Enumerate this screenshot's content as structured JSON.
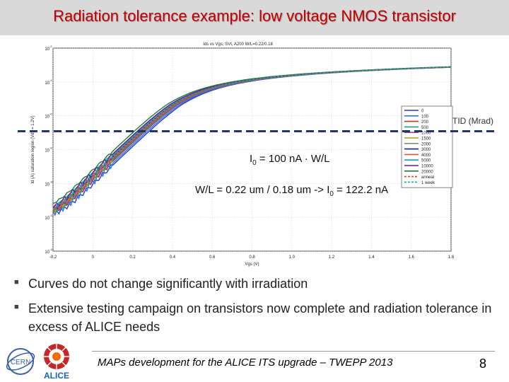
{
  "slide": {
    "title": "Radiation tolerance example: low voltage NMOS transistor",
    "footer": "MAPs development for the ALICE ITS upgrade – TWEPP 2013",
    "page_number": "8",
    "bullets": [
      "Curves do not change significantly with irradiation",
      "Extensive testing campaign on transistors now complete and radiation tolerance in excess of ALICE needs"
    ],
    "annotations": {
      "i0_main": "I",
      "i0_sub": "0",
      "i0_rest": " = 100 nA · W/L",
      "wl_main": "W/L = 0.22 um / 0.18 um -> I",
      "wl_sub": "0",
      "wl_rest": " = 122.2 nA"
    },
    "tid_label": "TID (Mrad)",
    "logos": {
      "cern": "CERN",
      "alice": "ALICE"
    }
  },
  "colors": {
    "title": "#c00000",
    "title_bar": "#d9d9d9",
    "threshold": "#1f3864"
  },
  "chart_data": {
    "type": "line",
    "title": "Ids vs Vgs, SVt, A200 W/L=0.22/0.18",
    "xlabel": "Vgs (V)",
    "ylabel": "Id (A) saturation region (Vds = 1.2V)",
    "xlim": [
      -0.2,
      1.8
    ],
    "ylim_log10": [
      -14,
      -2
    ],
    "yscale": "log",
    "xticks": [
      -0.2,
      0,
      0.2,
      0.4,
      0.6,
      0.8,
      1,
      1.2,
      1.4,
      1.6,
      1.8
    ],
    "xtick_labels": [
      "-0.2",
      "0",
      "0.2",
      "0.4",
      "0.6",
      "0.8",
      "1.0",
      "1.2",
      "1.4",
      "1.6",
      "1.8"
    ],
    "yticks_log10": [
      -14,
      -12,
      -10,
      -8,
      -6,
      -4,
      -2
    ],
    "ytick_labels": [
      "10",
      "10",
      "10",
      "10",
      "10",
      "10",
      "10"
    ],
    "ytick_exponents": [
      "-14",
      "-12",
      "-10",
      "-8",
      "-6",
      "-4",
      "-2"
    ],
    "grid": true,
    "legend_title": "TID (Mrad)",
    "legend_position": "right",
    "reference_line": {
      "label": "I0 = 122.2 nA",
      "value": 1.222e-07
    },
    "series": [
      {
        "name": "0",
        "color": "#1f3fbf",
        "shift": 0.0
      },
      {
        "name": "100",
        "color": "#2f6fff",
        "shift": -0.01
      },
      {
        "name": "200",
        "color": "#c0392b",
        "shift": -0.02
      },
      {
        "name": "500",
        "color": "#17a589",
        "shift": -0.025
      },
      {
        "name": "1000",
        "color": "#8e44ad",
        "shift": -0.03
      },
      {
        "name": "1500",
        "color": "#b7950b",
        "shift": -0.035
      },
      {
        "name": "2000",
        "color": "#7f8c8d",
        "shift": -0.04
      },
      {
        "name": "3000",
        "color": "#1a237e",
        "shift": -0.045
      },
      {
        "name": "4000",
        "color": "#e74c3c",
        "shift": -0.05
      },
      {
        "name": "5000",
        "color": "#00acc1",
        "shift": -0.055
      },
      {
        "name": "10000",
        "color": "#6a1b9a",
        "shift": -0.06
      },
      {
        "name": "20000",
        "color": "#1e7d32",
        "shift": -0.075
      },
      {
        "name": "anneal",
        "color": "#e53935",
        "shift": -0.035
      },
      {
        "name": "1 week",
        "color": "#26a69a",
        "shift": -0.045
      }
    ]
  }
}
